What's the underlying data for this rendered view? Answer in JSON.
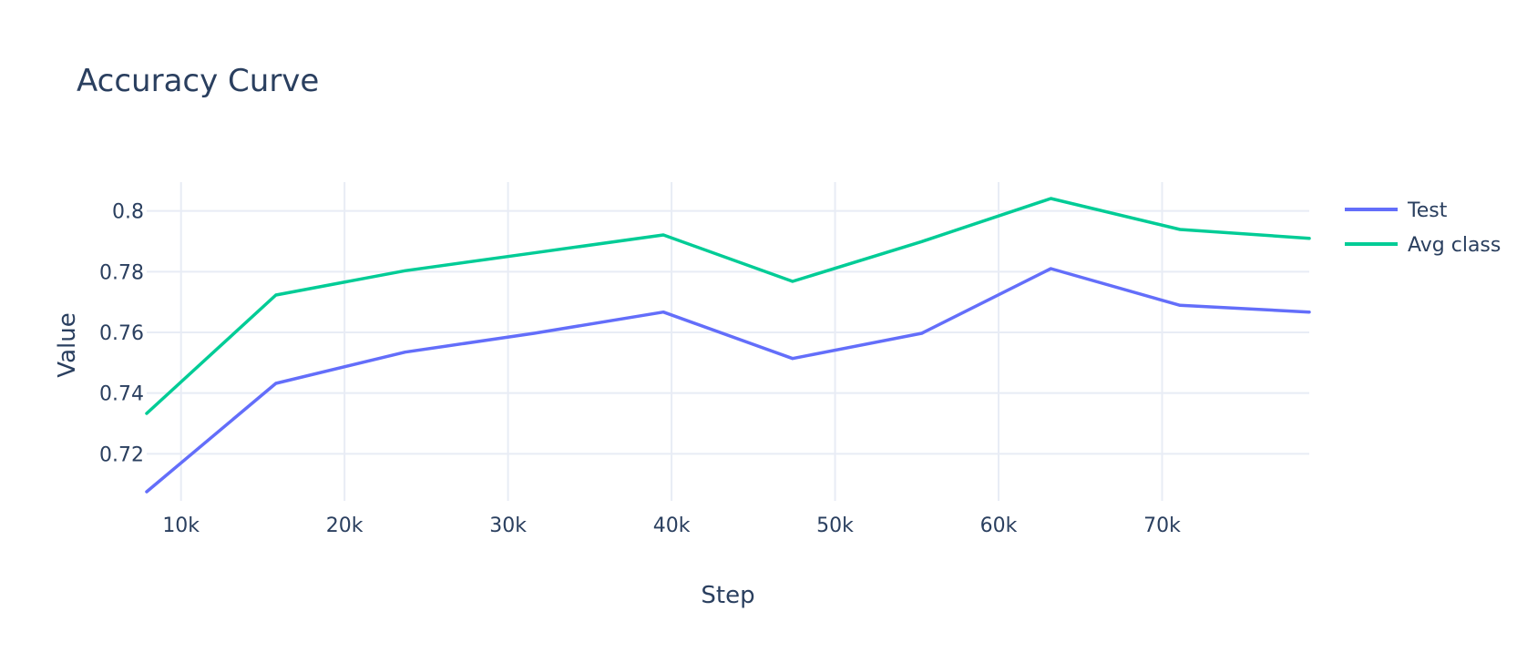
{
  "chart_data": {
    "type": "line",
    "title": "Accuracy Curve",
    "xlabel": "Step",
    "ylabel": "Value",
    "xlim": [
      7900,
      79000
    ],
    "ylim": [
      0.7045,
      0.8095
    ],
    "x_ticks": [
      10000,
      20000,
      30000,
      40000,
      50000,
      60000,
      70000
    ],
    "x_tick_labels": [
      "10k",
      "20k",
      "30k",
      "40k",
      "50k",
      "60k",
      "70k"
    ],
    "y_ticks": [
      0.72,
      0.74,
      0.76,
      0.78,
      0.8
    ],
    "y_tick_labels": [
      "0.72",
      "0.74",
      "0.76",
      "0.78",
      "0.8"
    ],
    "grid": true,
    "legend_position": "top-right",
    "x": [
      7900,
      15800,
      23700,
      31600,
      39500,
      47400,
      55300,
      63200,
      71100,
      79000
    ],
    "series": [
      {
        "name": "Test",
        "color": "#636efa",
        "values": [
          0.7075,
          0.7432,
          0.7535,
          0.7597,
          0.7667,
          0.7514,
          0.7597,
          0.781,
          0.7689,
          0.7667
        ]
      },
      {
        "name": "Avg class",
        "color": "#00cc96",
        "values": [
          0.7333,
          0.7723,
          0.7803,
          0.7862,
          0.7921,
          0.7768,
          0.7899,
          0.8041,
          0.7939,
          0.791
        ]
      }
    ]
  }
}
